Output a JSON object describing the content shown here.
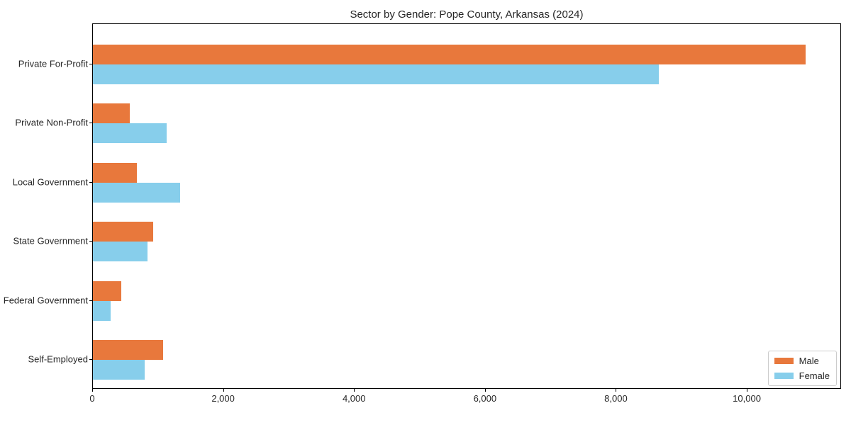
{
  "chart_data": {
    "type": "bar",
    "orientation": "horizontal",
    "title": "Sector by Gender: Pope County, Arkansas (2024)",
    "categories": [
      "Private For-Profit",
      "Private Non-Profit",
      "Local Government",
      "State Government",
      "Federal Government",
      "Self-Employed"
    ],
    "series": [
      {
        "name": "Male",
        "color": "#e8783c",
        "values": [
          10890,
          560,
          670,
          920,
          430,
          1070
        ]
      },
      {
        "name": "Female",
        "color": "#87ceeb",
        "values": [
          8650,
          1130,
          1330,
          830,
          270,
          790
        ]
      }
    ],
    "xlabel": "",
    "ylabel": "",
    "xlim": [
      0,
      11440
    ],
    "xticks": [
      0,
      2000,
      4000,
      6000,
      8000,
      10000
    ],
    "xtick_labels": [
      "0",
      "2,000",
      "4,000",
      "6,000",
      "8,000",
      "10,000"
    ],
    "legend_position": "lower right",
    "grid": false
  }
}
